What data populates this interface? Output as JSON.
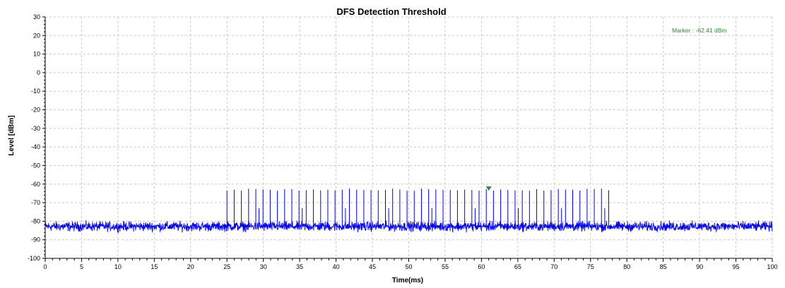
{
  "chart_data": {
    "type": "line",
    "title": "DFS Detection Threshold",
    "xlabel": "Time(ms)",
    "ylabel": "Level [dBm]",
    "xlim": [
      0,
      100
    ],
    "ylim": [
      -100,
      30
    ],
    "x_ticks": [
      "0",
      "5",
      "10",
      "15",
      "20",
      "25",
      "30",
      "35",
      "40",
      "45",
      "50",
      "55",
      "60",
      "65",
      "70",
      "75",
      "80",
      "85",
      "90",
      "95",
      "100"
    ],
    "y_ticks": [
      "30",
      "20",
      "10",
      "0",
      "-10",
      "-20",
      "-30",
      "-40",
      "-50",
      "-60",
      "-70",
      "-80",
      "-90",
      "-100"
    ],
    "grid": true,
    "series": [
      {
        "noise_floor_dbm": -82.8,
        "noise_spread_db": 2.5,
        "pulses": {
          "start_ms": 25.0,
          "end_ms": 77.5,
          "count": 54,
          "peak_dbm": -63,
          "secondary_peak_dbm": -73
        }
      }
    ],
    "marker": {
      "label": "Marker : -62.41 dBm",
      "x_ms": 61.0,
      "y_dbm": -62.41
    },
    "colors": {
      "trace": "#0000ff",
      "marker": "#2e8b2e",
      "grid": "#c8c8c8",
      "axis": "#000000"
    }
  }
}
